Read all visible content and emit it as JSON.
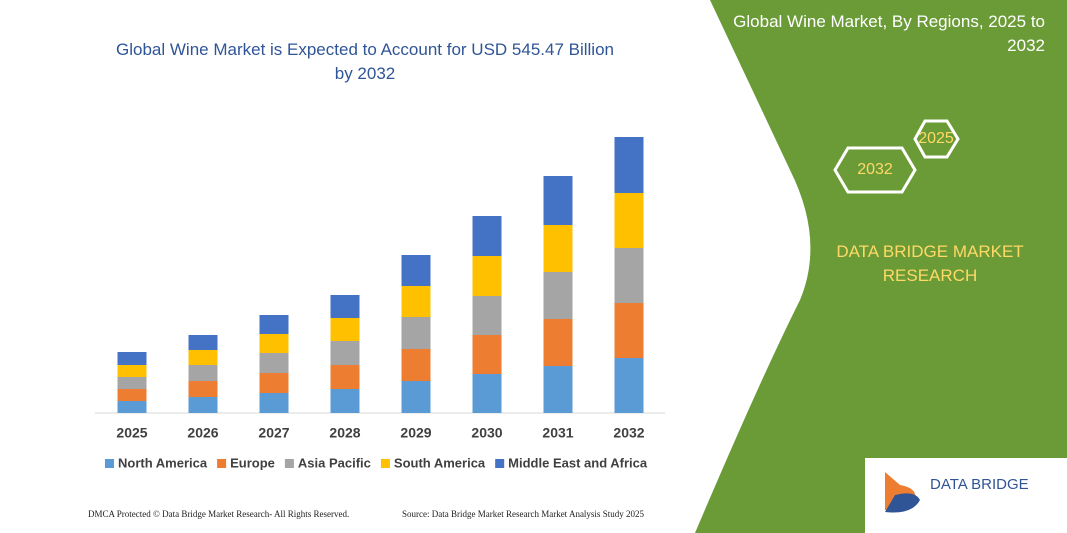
{
  "chart_data": {
    "type": "stacked-bar",
    "title": "Global Wine Market is Expected to Account for USD 545.47 Billion by 2032",
    "categories": [
      "2025",
      "2026",
      "2027",
      "2028",
      "2029",
      "2030",
      "2031",
      "2032"
    ],
    "series": [
      {
        "name": "North America",
        "color": "#5b9bd5",
        "values": [
          12,
          16,
          20,
          24,
          32,
          39,
          47,
          55
        ]
      },
      {
        "name": "Europe",
        "color": "#ed7d31",
        "values": [
          12,
          16,
          20,
          24,
          32,
          39,
          47,
          55
        ]
      },
      {
        "name": "Asia Pacific",
        "color": "#a5a5a5",
        "values": [
          12,
          16,
          20,
          24,
          32,
          39,
          47,
          55
        ]
      },
      {
        "name": "South America",
        "color": "#ffc000",
        "values": [
          12,
          15,
          19,
          23,
          31,
          40,
          47,
          55
        ]
      },
      {
        "name": "Middle East and Africa",
        "color": "#4472c4",
        "values": [
          13,
          15,
          19,
          23,
          31,
          40,
          49,
          56
        ]
      }
    ]
  },
  "panel": {
    "title": "Global Wine Market, By Regions, 2025 to 2032",
    "hex_back": "2025",
    "hex_front": "2032",
    "brand": "DATA BRIDGE MARKET RESEARCH",
    "logo": "DATA BRIDGE"
  },
  "footer": {
    "left": "DMCA Protected © Data Bridge Market Research- All Rights Reserved.",
    "right": "Source: Data Bridge Market Research Market Analysis Study 2025"
  }
}
